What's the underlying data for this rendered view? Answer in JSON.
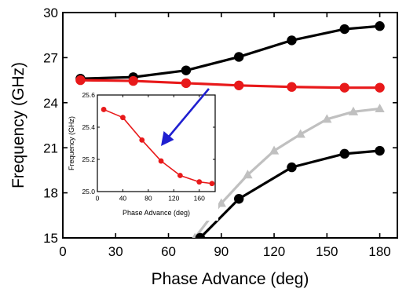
{
  "chart_data": [
    {
      "type": "line",
      "xlabel": "Phase Advance (deg)",
      "ylabel": "Frequency (GHz)",
      "xlim": [
        0,
        190
      ],
      "ylim": [
        15,
        30
      ],
      "xticks": [
        0,
        30,
        60,
        90,
        120,
        150,
        180
      ],
      "yticks": [
        15,
        18,
        21,
        24,
        27,
        30
      ],
      "xtick_labels": [
        "0",
        "30",
        "60",
        "90",
        "120",
        "150",
        "180"
      ],
      "ytick_labels": [
        "15",
        "18",
        "21",
        "24",
        "27",
        "30"
      ],
      "grid": false,
      "legend": "none",
      "series": [
        {
          "color": "#000000",
          "marker": "circle",
          "values_x": [
            10,
            40,
            70,
            100,
            130,
            160,
            180
          ],
          "values_y": [
            25.6,
            25.7,
            26.15,
            27.05,
            28.15,
            28.9,
            29.1
          ]
        },
        {
          "color": "#e8191a",
          "marker": "circle",
          "values_x": [
            10,
            40,
            70,
            100,
            130,
            160,
            180
          ],
          "values_y": [
            25.5,
            25.45,
            25.3,
            25.15,
            25.05,
            25.0,
            25.0
          ]
        },
        {
          "color": "#c0c0c0",
          "marker": "triangle",
          "values_x": [
            75,
            90,
            105,
            120,
            135,
            150,
            165,
            180
          ],
          "values_y": [
            15.0,
            17.3,
            19.2,
            20.8,
            21.9,
            22.9,
            23.4,
            23.6
          ]
        },
        {
          "color": "#000000",
          "marker": "circle",
          "values_x": [
            78,
            100,
            130,
            160,
            180
          ],
          "values_y": [
            15.0,
            17.6,
            19.7,
            20.6,
            20.8
          ]
        }
      ]
    },
    {
      "type": "line",
      "xlabel": "Phase Advance (deg)",
      "ylabel": "Frequency (GHz)",
      "xlim": [
        0,
        185
      ],
      "ylim": [
        25.0,
        25.6
      ],
      "xticks": [
        0,
        40,
        80,
        120,
        160
      ],
      "yticks": [
        25.0,
        25.2,
        25.4,
        25.6
      ],
      "xtick_labels": [
        "0",
        "40",
        "80",
        "120",
        "160"
      ],
      "ytick_labels": [
        "25.0",
        "25.2",
        "25.4",
        "25.6"
      ],
      "grid": false,
      "legend": "none",
      "series": [
        {
          "color": "#e8191a",
          "marker": "circle",
          "values_x": [
            10,
            40,
            70,
            100,
            130,
            160,
            180
          ],
          "values_y": [
            25.51,
            25.46,
            25.32,
            25.19,
            25.1,
            25.06,
            25.05
          ]
        }
      ]
    }
  ],
  "arrow": {
    "color": "#1f1fd0"
  }
}
